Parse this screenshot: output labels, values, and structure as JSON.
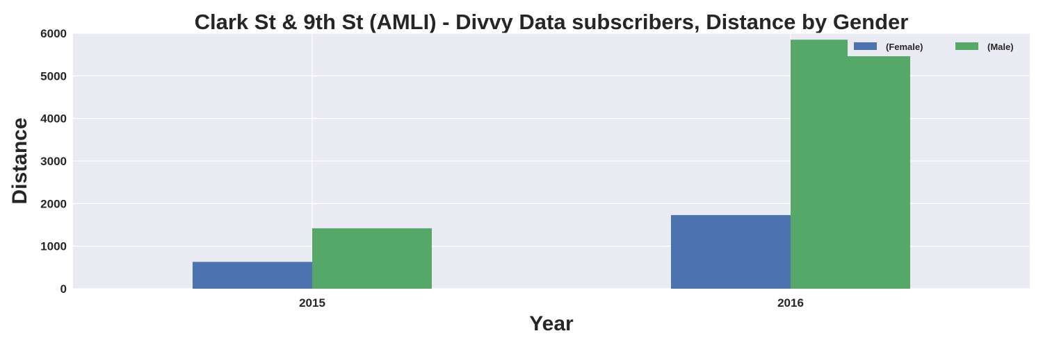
{
  "chart_data": {
    "type": "bar",
    "title": "Clark St & 9th St (AMLI) - Divvy Data subscribers, Distance by Gender",
    "xlabel": "Year",
    "ylabel": "Distance",
    "categories": [
      "2015",
      "2016"
    ],
    "series": [
      {
        "name": "(Female)",
        "color": "#4c72b0",
        "values": [
          630,
          1730
        ]
      },
      {
        "name": "(Male)",
        "color": "#55a868",
        "values": [
          1420,
          5850
        ]
      }
    ],
    "ylim": [
      0,
      6000
    ],
    "yticks": [
      0,
      1000,
      2000,
      3000,
      4000,
      5000,
      6000
    ],
    "grid": true,
    "legend_position": "top-right",
    "background_color": "#eaeaf2"
  }
}
